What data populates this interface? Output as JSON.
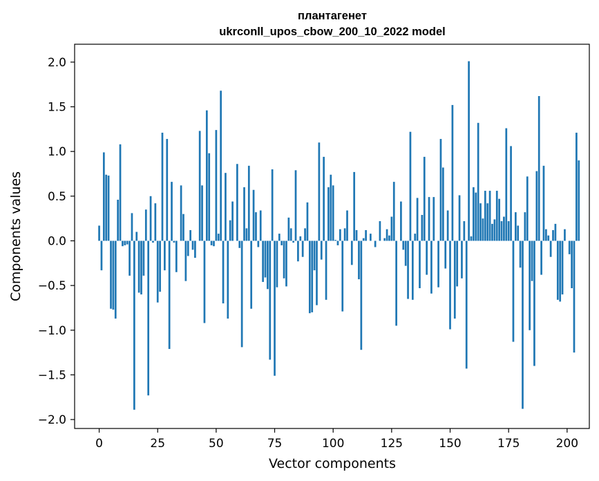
{
  "chart_data": {
    "type": "bar",
    "title": "плантагенет",
    "subtitle": "ukrconll_upos_cbow_200_10_2022 model",
    "xlabel": "Vector components",
    "ylabel": "Components values",
    "xlim": [
      -10.5,
      209.5
    ],
    "ylim": [
      -2.1,
      2.2
    ],
    "xticks": [
      0,
      25,
      50,
      75,
      100,
      125,
      150,
      175,
      200
    ],
    "xtick_labels": [
      "0",
      "25",
      "50",
      "75",
      "100",
      "125",
      "150",
      "175",
      "200"
    ],
    "yticks": [
      -2.0,
      -1.5,
      -1.0,
      -0.5,
      0.0,
      0.5,
      1.0,
      1.5,
      2.0
    ],
    "ytick_labels": [
      "−2.0",
      "−1.5",
      "−1.0",
      "−0.5",
      "0.0",
      "0.5",
      "1.0",
      "1.5",
      "2.0"
    ],
    "grid": false,
    "bar_color": "#1f77b4",
    "values": [
      0.17,
      -0.33,
      0.99,
      0.74,
      0.73,
      -0.76,
      -0.77,
      -0.87,
      0.46,
      1.08,
      -0.06,
      -0.05,
      -0.04,
      -0.39,
      0.31,
      -1.89,
      0.1,
      -0.58,
      -0.6,
      -0.39,
      0.35,
      -1.73,
      0.5,
      -0.02,
      0.42,
      -0.69,
      -0.57,
      1.21,
      -0.33,
      1.14,
      -1.21,
      0.66,
      -0.02,
      -0.35,
      0.0,
      0.62,
      0.3,
      -0.45,
      -0.17,
      0.12,
      -0.1,
      -0.19,
      0.0,
      1.23,
      0.62,
      -0.92,
      1.46,
      0.98,
      -0.05,
      -0.06,
      1.24,
      0.08,
      1.68,
      -0.7,
      0.76,
      -0.87,
      0.23,
      0.44,
      0.0,
      0.86,
      -0.08,
      -1.19,
      0.6,
      0.14,
      0.84,
      -0.76,
      0.57,
      0.32,
      -0.07,
      0.34,
      -0.46,
      -0.41,
      -0.54,
      -1.33,
      0.8,
      -1.51,
      -0.52,
      0.08,
      -0.05,
      -0.42,
      -0.51,
      0.26,
      0.14,
      -0.02,
      0.79,
      -0.23,
      0.05,
      -0.18,
      0.14,
      0.43,
      -0.81,
      -0.8,
      -0.33,
      -0.72,
      1.1,
      -0.21,
      0.94,
      -0.66,
      0.6,
      0.74,
      0.62,
      0.01,
      -0.05,
      0.13,
      -0.79,
      0.14,
      0.34,
      0.0,
      -0.27,
      0.77,
      0.12,
      -0.43,
      -1.22,
      0.03,
      0.12,
      0.0,
      0.08,
      0.0,
      -0.07,
      0.0,
      0.22,
      0.0,
      0.03,
      0.13,
      0.06,
      0.27,
      0.66,
      -0.95,
      0.0,
      0.44,
      -0.1,
      -0.28,
      -0.65,
      1.22,
      -0.66,
      0.08,
      0.48,
      -0.53,
      0.29,
      0.94,
      -0.38,
      0.49,
      -0.59,
      0.49,
      0.0,
      -0.52,
      1.14,
      0.82,
      -0.31,
      0.34,
      -0.99,
      1.52,
      -0.87,
      -0.51,
      0.51,
      -0.42,
      0.22,
      -1.43,
      2.01,
      0.05,
      0.6,
      0.54,
      1.32,
      0.42,
      0.25,
      0.56,
      0.42,
      0.56,
      0.19,
      0.24,
      0.56,
      0.47,
      0.22,
      0.27,
      1.26,
      0.22,
      1.06,
      -1.13,
      0.32,
      0.17,
      -0.3,
      -1.88,
      0.32,
      0.72,
      -1.0,
      -0.45,
      -1.4,
      0.78,
      1.62,
      -0.38,
      0.84,
      0.13,
      0.06,
      -0.18,
      0.12,
      0.19,
      -0.66,
      -0.68,
      -0.6,
      0.13,
      0.0,
      -0.15,
      -0.53,
      -1.25,
      1.21,
      0.9
    ]
  }
}
